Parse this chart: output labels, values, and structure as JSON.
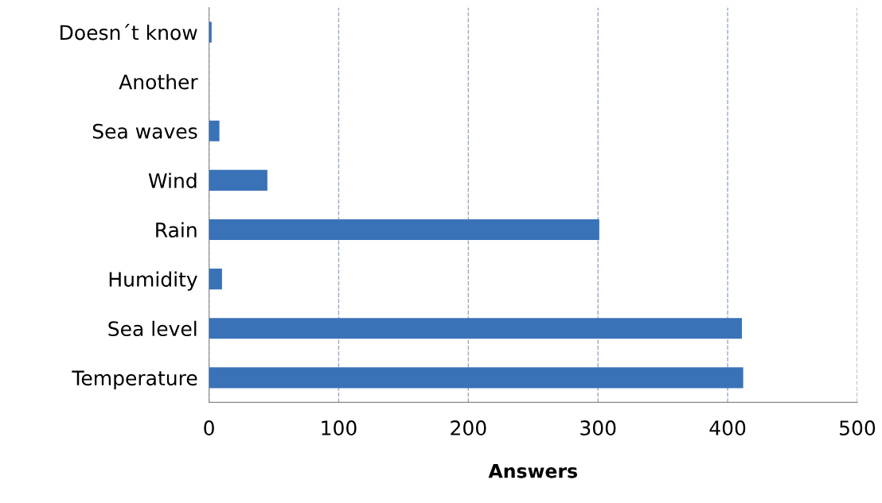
{
  "chart_data": {
    "type": "bar",
    "orientation": "horizontal",
    "xlabel": "Answers",
    "categories": [
      "Doesn´t know",
      "Another",
      "Sea waves",
      "Wind",
      "Rain",
      "Humidity",
      "Sea level",
      "Temperature"
    ],
    "values": [
      2,
      0,
      8,
      45,
      301,
      10,
      411,
      412
    ],
    "color": "#3a72b8",
    "xlim": [
      0,
      500
    ],
    "xticks": [
      0,
      100,
      200,
      300,
      400,
      500
    ],
    "grid": "x"
  }
}
